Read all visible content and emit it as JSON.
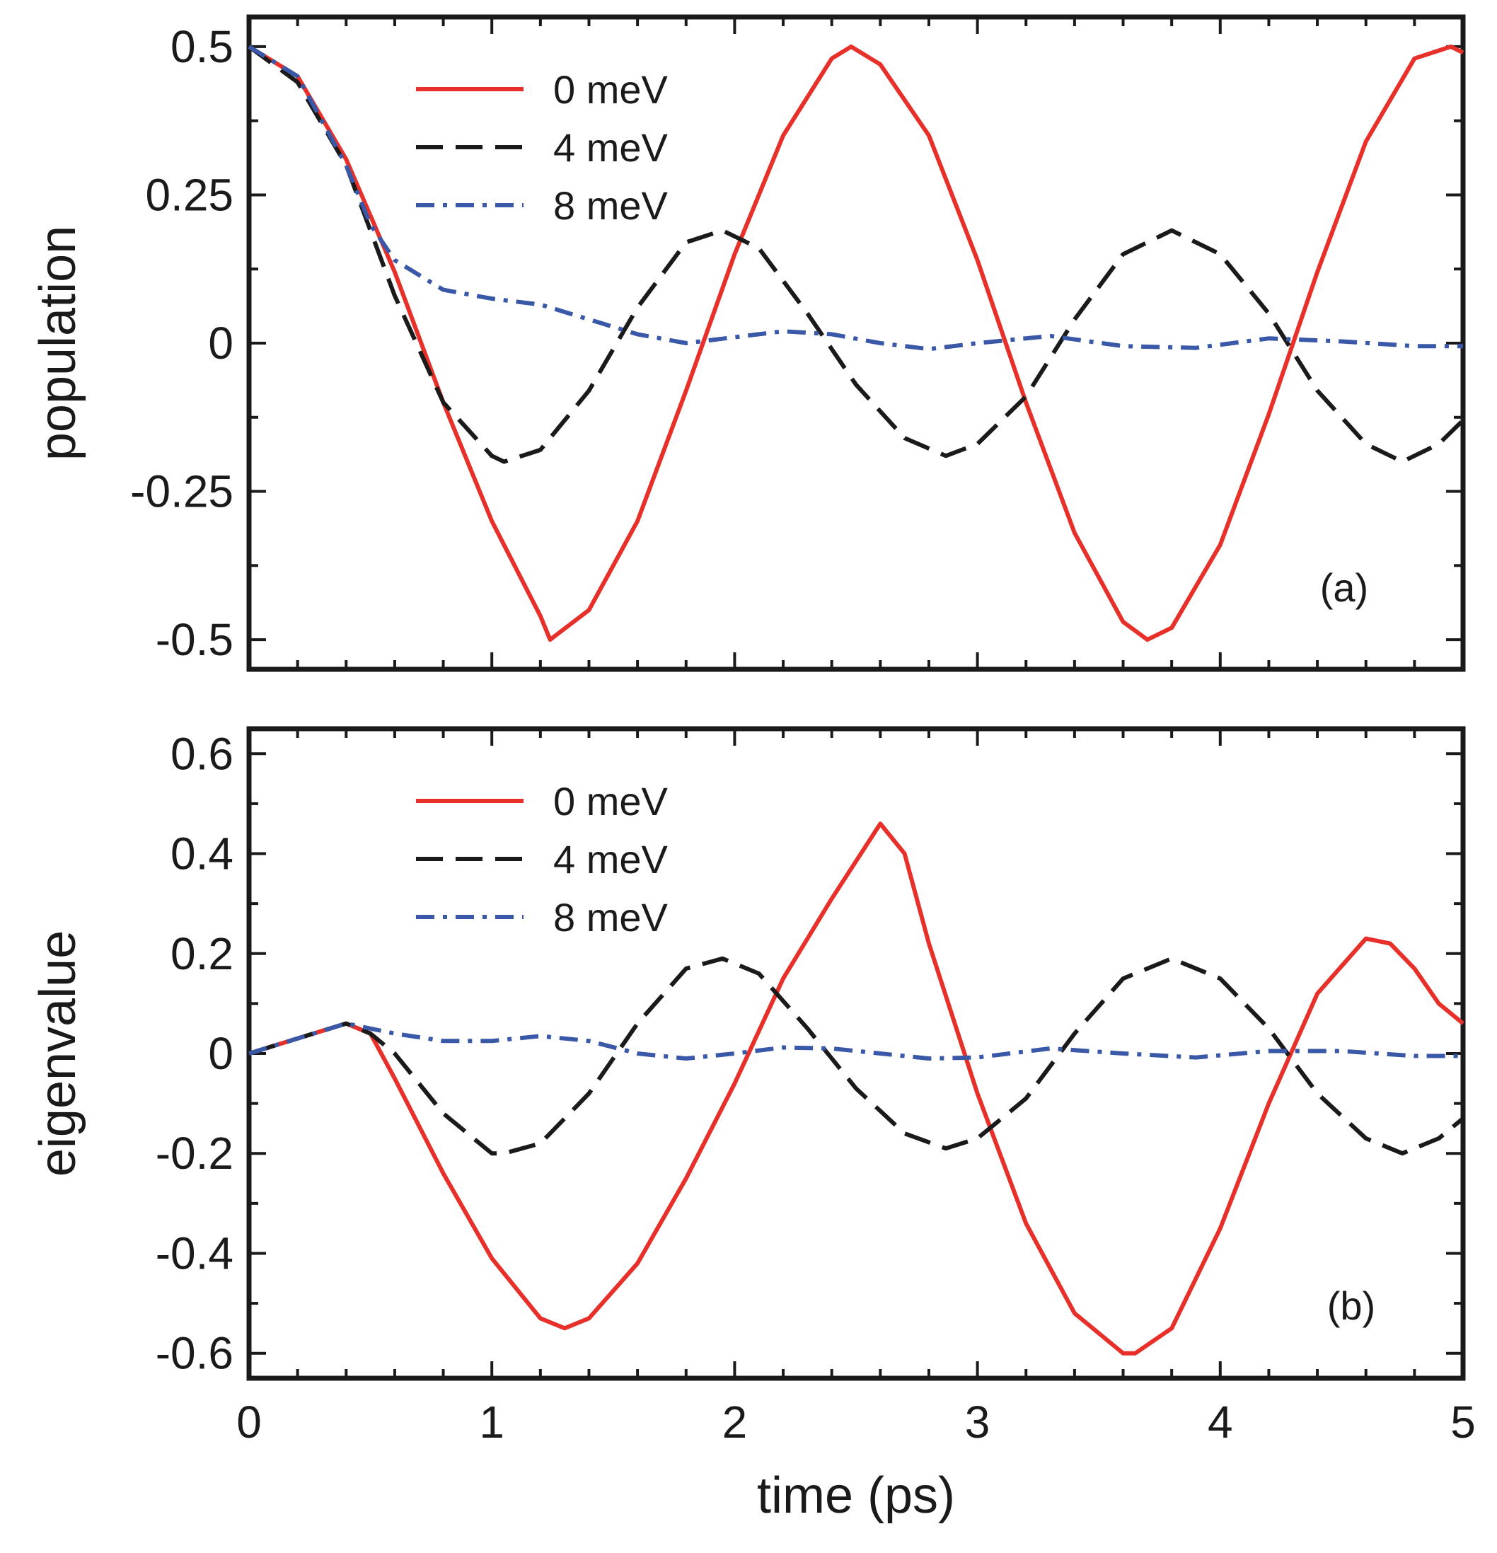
{
  "chart_data": [
    {
      "type": "line",
      "panel_label": "(a)",
      "xlabel": "",
      "ylabel": "population",
      "xlim": [
        0,
        5
      ],
      "ylim": [
        -0.55,
        0.55
      ],
      "yticks": [
        {
          "value": 0.5,
          "label": "0.5"
        },
        {
          "value": 0.25,
          "label": "0.25"
        },
        {
          "value": 0,
          "label": "0"
        },
        {
          "value": -0.25,
          "label": "-0.25"
        },
        {
          "value": -0.5,
          "label": "-0.5"
        }
      ],
      "xticks": [],
      "grid": false,
      "legend_position": "top-left",
      "series": [
        {
          "name": "0 meV",
          "color": "#e8302a",
          "dash": "solid",
          "x": [
            0,
            0.2,
            0.4,
            0.6,
            0.8,
            1.0,
            1.2,
            1.24,
            1.4,
            1.6,
            1.8,
            2.0,
            2.2,
            2.4,
            2.48,
            2.6,
            2.8,
            3.0,
            3.2,
            3.4,
            3.6,
            3.7,
            3.8,
            4.0,
            4.2,
            4.4,
            4.6,
            4.8,
            4.95,
            5.0
          ],
          "y": [
            0.5,
            0.45,
            0.31,
            0.12,
            -0.1,
            -0.3,
            -0.46,
            -0.5,
            -0.45,
            -0.3,
            -0.08,
            0.15,
            0.35,
            0.48,
            0.5,
            0.47,
            0.35,
            0.14,
            -0.1,
            -0.32,
            -0.47,
            -0.5,
            -0.48,
            -0.34,
            -0.12,
            0.12,
            0.34,
            0.48,
            0.5,
            0.49
          ]
        },
        {
          "name": "4 meV",
          "color": "#1a1a1a",
          "dash": "long-dash",
          "x": [
            0,
            0.2,
            0.4,
            0.6,
            0.8,
            1.0,
            1.05,
            1.2,
            1.4,
            1.6,
            1.8,
            1.95,
            2.1,
            2.3,
            2.5,
            2.7,
            2.87,
            3.0,
            3.2,
            3.4,
            3.6,
            3.8,
            4.0,
            4.2,
            4.4,
            4.6,
            4.75,
            4.9,
            5.0
          ],
          "y": [
            0.5,
            0.44,
            0.3,
            0.08,
            -0.1,
            -0.19,
            -0.2,
            -0.18,
            -0.08,
            0.06,
            0.17,
            0.19,
            0.16,
            0.05,
            -0.07,
            -0.16,
            -0.19,
            -0.17,
            -0.09,
            0.04,
            0.15,
            0.19,
            0.15,
            0.05,
            -0.08,
            -0.17,
            -0.2,
            -0.17,
            -0.13
          ]
        },
        {
          "name": "8 meV",
          "color": "#3a58a8",
          "dash": "dash-dot",
          "x": [
            0,
            0.2,
            0.4,
            0.5,
            0.6,
            0.8,
            1.0,
            1.2,
            1.4,
            1.6,
            1.8,
            2.0,
            2.2,
            2.4,
            2.6,
            2.8,
            3.0,
            3.3,
            3.6,
            3.9,
            4.2,
            4.5,
            4.8,
            5.0
          ],
          "y": [
            0.5,
            0.45,
            0.3,
            0.2,
            0.14,
            0.09,
            0.075,
            0.065,
            0.04,
            0.015,
            0.0,
            0.01,
            0.02,
            0.015,
            0.0,
            -0.01,
            0.0,
            0.012,
            -0.005,
            -0.008,
            0.008,
            0.003,
            -0.005,
            -0.005
          ]
        }
      ]
    },
    {
      "type": "line",
      "panel_label": "(b)",
      "xlabel": "time (ps)",
      "ylabel": "eigenvalue",
      "xlim": [
        0,
        5
      ],
      "ylim": [
        -0.65,
        0.65
      ],
      "yticks": [
        {
          "value": 0.6,
          "label": "0.6"
        },
        {
          "value": 0.4,
          "label": "0.4"
        },
        {
          "value": 0.2,
          "label": "0.2"
        },
        {
          "value": 0,
          "label": "0"
        },
        {
          "value": -0.2,
          "label": "-0.2"
        },
        {
          "value": -0.4,
          "label": "-0.4"
        },
        {
          "value": -0.6,
          "label": "-0.6"
        }
      ],
      "xticks": [
        {
          "value": 0,
          "label": "0"
        },
        {
          "value": 1,
          "label": "1"
        },
        {
          "value": 2,
          "label": "2"
        },
        {
          "value": 3,
          "label": "3"
        },
        {
          "value": 4,
          "label": "4"
        },
        {
          "value": 5,
          "label": "5"
        }
      ],
      "grid": false,
      "legend_position": "top-left",
      "series": [
        {
          "name": "0 meV",
          "color": "#e8302a",
          "dash": "solid",
          "x": [
            0,
            0.2,
            0.4,
            0.5,
            0.6,
            0.8,
            1.0,
            1.2,
            1.3,
            1.4,
            1.6,
            1.8,
            2.0,
            2.2,
            2.4,
            2.6,
            2.7,
            2.8,
            3.0,
            3.2,
            3.4,
            3.6,
            3.65,
            3.8,
            4.0,
            4.2,
            4.4,
            4.6,
            4.7,
            4.8,
            4.9,
            5.0
          ],
          "y": [
            0,
            0.03,
            0.06,
            0.04,
            -0.05,
            -0.24,
            -0.41,
            -0.53,
            -0.55,
            -0.53,
            -0.42,
            -0.25,
            -0.06,
            0.15,
            0.31,
            0.46,
            0.4,
            0.22,
            -0.08,
            -0.34,
            -0.52,
            -0.6,
            -0.6,
            -0.55,
            -0.35,
            -0.1,
            0.12,
            0.23,
            0.22,
            0.17,
            0.1,
            0.06
          ]
        },
        {
          "name": "4 meV",
          "color": "#1a1a1a",
          "dash": "long-dash",
          "x": [
            0,
            0.2,
            0.4,
            0.5,
            0.6,
            0.8,
            1.0,
            1.05,
            1.2,
            1.4,
            1.6,
            1.8,
            1.95,
            2.1,
            2.3,
            2.5,
            2.7,
            2.87,
            3.0,
            3.2,
            3.4,
            3.6,
            3.8,
            4.0,
            4.2,
            4.4,
            4.6,
            4.75,
            4.9,
            5.0
          ],
          "y": [
            0,
            0.03,
            0.06,
            0.04,
            0.0,
            -0.12,
            -0.2,
            -0.2,
            -0.18,
            -0.08,
            0.06,
            0.17,
            0.19,
            0.16,
            0.05,
            -0.07,
            -0.16,
            -0.19,
            -0.17,
            -0.09,
            0.04,
            0.15,
            0.19,
            0.15,
            0.05,
            -0.08,
            -0.17,
            -0.2,
            -0.17,
            -0.13
          ]
        },
        {
          "name": "8 meV",
          "color": "#3a58a8",
          "dash": "dash-dot",
          "x": [
            0,
            0.2,
            0.4,
            0.6,
            0.8,
            1.0,
            1.2,
            1.4,
            1.6,
            1.8,
            2.0,
            2.2,
            2.4,
            2.6,
            2.8,
            3.0,
            3.3,
            3.6,
            3.9,
            4.2,
            4.5,
            4.8,
            5.0
          ],
          "y": [
            0,
            0.03,
            0.06,
            0.04,
            0.025,
            0.025,
            0.035,
            0.025,
            0.0,
            -0.01,
            0.0,
            0.012,
            0.01,
            0.0,
            -0.01,
            -0.008,
            0.01,
            0.0,
            -0.008,
            0.005,
            0.005,
            -0.005,
            -0.005
          ]
        }
      ]
    }
  ]
}
